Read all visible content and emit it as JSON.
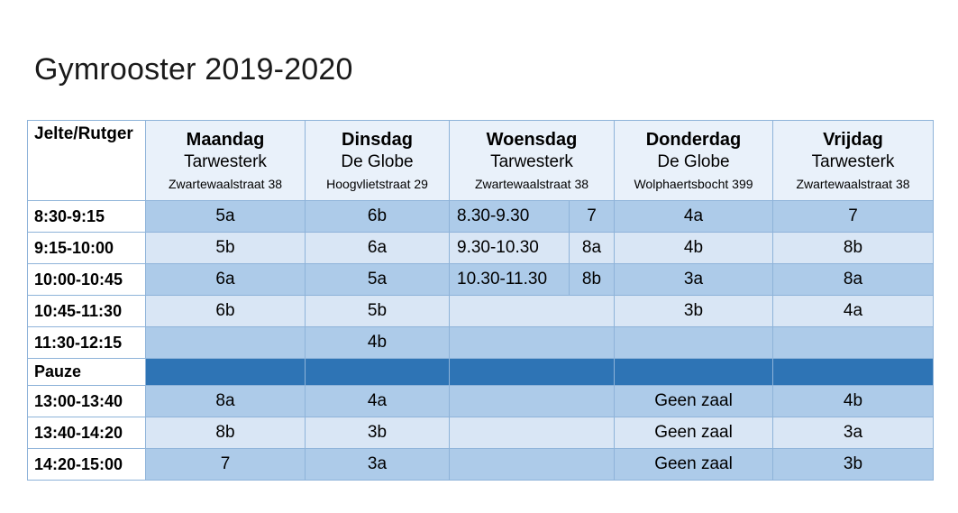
{
  "title": "Gymrooster 2019-2020",
  "corner": "Jelte/Rutger",
  "days": [
    {
      "name": "Maandag",
      "location": "Tarwesterk",
      "address": "Zwartewaalstraat 38"
    },
    {
      "name": "Dinsdag",
      "location": "De Globe",
      "address": "Hoogvlietstraat 29"
    },
    {
      "name": "Woensdag",
      "location": "Tarwesterk",
      "address": "Zwartewaalstraat 38"
    },
    {
      "name": "Donderdag",
      "location": "De Globe",
      "address": "Wolphaertsbocht 399"
    },
    {
      "name": "Vrijdag",
      "location": "Tarwesterk",
      "address": "Zwartewaalstraat 38"
    }
  ],
  "rows": [
    {
      "time": "8:30-9:15",
      "ma": "5a",
      "di": "6b",
      "wo_time": "8.30-9.30",
      "wo": "7",
      "do": "4a",
      "vr": "7"
    },
    {
      "time": "9:15-10:00",
      "ma": "5b",
      "di": "6a",
      "wo_time": "9.30-10.30",
      "wo": "8a",
      "do": "4b",
      "vr": "8b"
    },
    {
      "time": "10:00-10:45",
      "ma": "6a",
      "di": "5a",
      "wo_time": "10.30-11.30",
      "wo": "8b",
      "do": "3a",
      "vr": "8a"
    },
    {
      "time": "10:45-11:30",
      "ma": "6b",
      "di": "5b",
      "wo_time": "",
      "wo": "",
      "do": "3b",
      "vr": "4a"
    },
    {
      "time": "11:30-12:15",
      "ma": "",
      "di": "4b",
      "wo_time": "",
      "wo": "",
      "do": "",
      "vr": ""
    },
    {
      "time": "Pauze"
    },
    {
      "time": "13:00-13:40",
      "ma": "8a",
      "di": "4a",
      "wo_time": "",
      "wo": "",
      "do": "Geen zaal",
      "vr": "4b"
    },
    {
      "time": "13:40-14:20",
      "ma": "8b",
      "di": "3b",
      "wo_time": "",
      "wo": "",
      "do": "Geen zaal",
      "vr": "3a"
    },
    {
      "time": "14:20-15:00",
      "ma": "7",
      "di": "3a",
      "wo_time": "",
      "wo": "",
      "do": "Geen zaal",
      "vr": "3b"
    }
  ],
  "colors": {
    "dark_row": "#adcbe9",
    "light_row": "#d9e6f5",
    "pauze_row": "#2e74b5",
    "header_bg": "#e9f1fa",
    "border": "#8eb3d9"
  }
}
